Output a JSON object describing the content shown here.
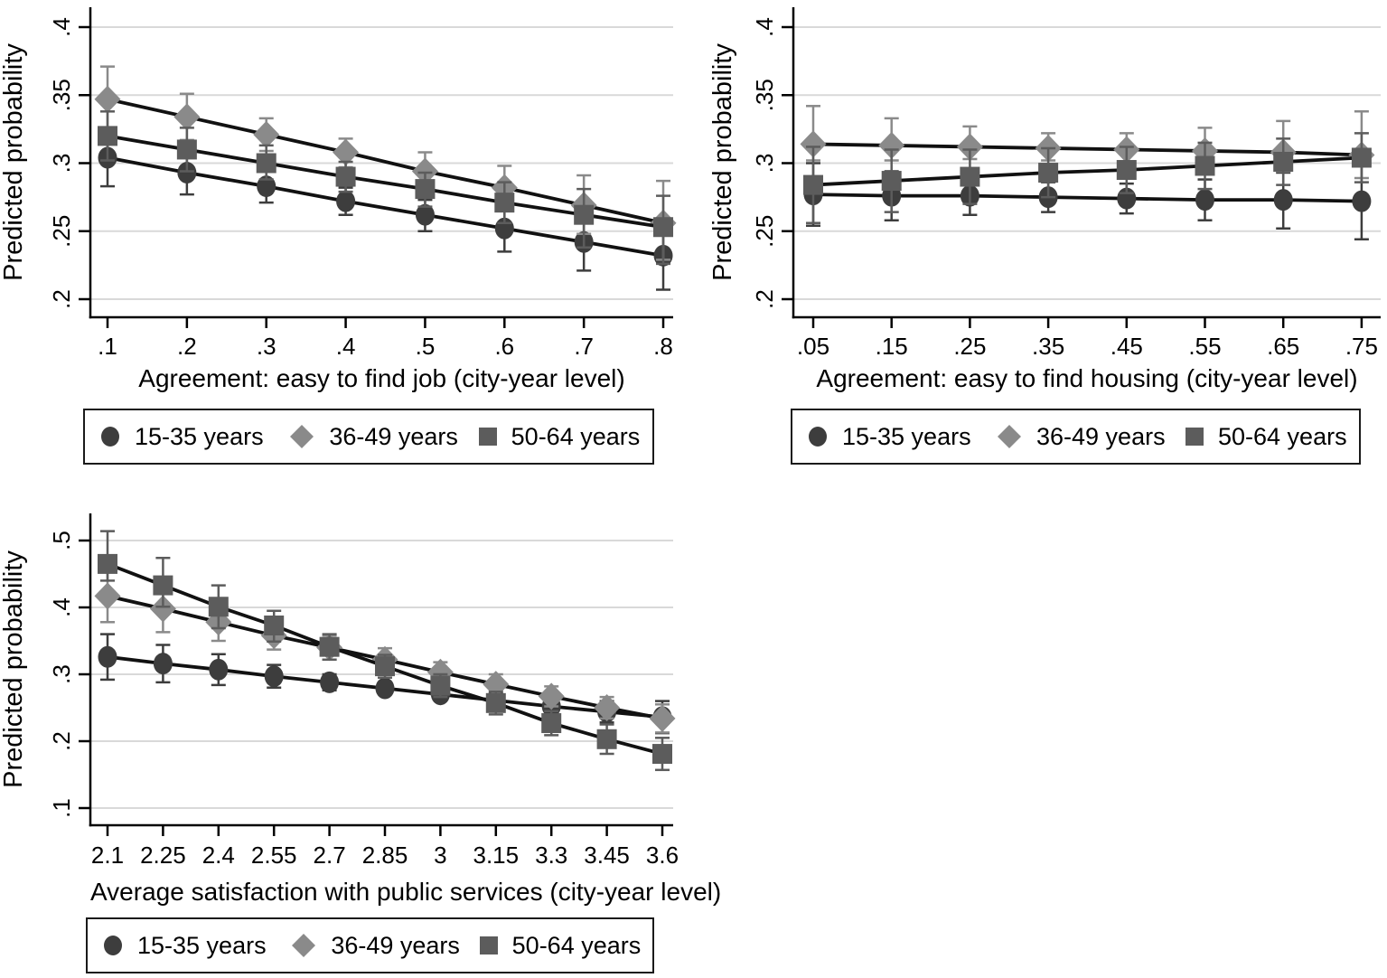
{
  "page": {
    "background_color": "#ffffff"
  },
  "colors": {
    "series_15_35": "#3d3d3d",
    "series_36_49": "#8a8a8a",
    "series_50_64": "#5c5c5c",
    "trend_line": "#111111",
    "gridline": "#d9d9d9",
    "axis": "#000000",
    "text": "#000000",
    "legend_border": "#1a1a1a"
  },
  "legend": {
    "items": [
      {
        "label": "15-35 years",
        "marker": "circle"
      },
      {
        "label": "36-49 years",
        "marker": "diamond"
      },
      {
        "label": "50-64 years",
        "marker": "square"
      }
    ]
  },
  "chart_data": [
    {
      "type": "line",
      "title": "",
      "xlabel": "Agreement: easy to find job (city-year level)",
      "ylabel": "Predicted probability",
      "x": [
        0.1,
        0.2,
        0.3,
        0.4,
        0.5,
        0.6,
        0.7,
        0.8
      ],
      "xtick_labels": [
        ".1",
        ".2",
        ".3",
        ".4",
        ".5",
        ".6",
        ".7",
        ".8"
      ],
      "ytick_values": [
        0.2,
        0.25,
        0.3,
        0.35,
        0.4
      ],
      "ytick_labels": [
        ".2",
        ".25",
        ".3",
        ".35",
        ".4"
      ],
      "ylim": [
        0.185,
        0.415
      ],
      "grid": true,
      "error_bars": true,
      "legend_position": "bottom",
      "series": [
        {
          "name": "15-35 years",
          "marker": "circle",
          "color_key": "series_15_35",
          "values": [
            0.304,
            0.293,
            0.283,
            0.272,
            0.262,
            0.252,
            0.242,
            0.232
          ],
          "ci_low": [
            0.283,
            0.277,
            0.271,
            0.262,
            0.25,
            0.235,
            0.221,
            0.207
          ],
          "ci_high": [
            0.325,
            0.31,
            0.295,
            0.282,
            0.273,
            0.267,
            0.263,
            0.258
          ]
        },
        {
          "name": "36-49 years",
          "marker": "diamond",
          "color_key": "series_36_49",
          "values": [
            0.347,
            0.334,
            0.321,
            0.308,
            0.294,
            0.282,
            0.269,
            0.256
          ],
          "ci_low": [
            0.325,
            0.317,
            0.309,
            0.297,
            0.281,
            0.265,
            0.248,
            0.229
          ],
          "ci_high": [
            0.371,
            0.351,
            0.333,
            0.318,
            0.308,
            0.298,
            0.291,
            0.287
          ]
        },
        {
          "name": "50-64 years",
          "marker": "square",
          "color_key": "series_50_64",
          "values": [
            0.32,
            0.31,
            0.3,
            0.29,
            0.281,
            0.271,
            0.262,
            0.253
          ],
          "ci_low": [
            0.302,
            0.294,
            0.288,
            0.279,
            0.268,
            0.256,
            0.238,
            0.226
          ],
          "ci_high": [
            0.338,
            0.326,
            0.313,
            0.301,
            0.293,
            0.286,
            0.281,
            0.276
          ]
        }
      ]
    },
    {
      "type": "line",
      "title": "",
      "xlabel": "Agreement: easy to find housing (city-year level)",
      "ylabel": "Predicted probability",
      "x": [
        0.05,
        0.15,
        0.25,
        0.35,
        0.45,
        0.55,
        0.65,
        0.75
      ],
      "xtick_labels": [
        ".05",
        ".15",
        ".25",
        ".35",
        ".45",
        ".55",
        ".65",
        ".75"
      ],
      "ytick_values": [
        0.2,
        0.25,
        0.3,
        0.35,
        0.4
      ],
      "ytick_labels": [
        ".2",
        ".25",
        ".3",
        ".35",
        ".4"
      ],
      "ylim": [
        0.185,
        0.415
      ],
      "grid": true,
      "error_bars": true,
      "legend_position": "bottom",
      "series": [
        {
          "name": "15-35 years",
          "marker": "circle",
          "color_key": "series_15_35",
          "values": [
            0.277,
            0.276,
            0.276,
            0.275,
            0.274,
            0.273,
            0.273,
            0.272
          ],
          "ci_low": [
            0.254,
            0.258,
            0.262,
            0.264,
            0.263,
            0.258,
            0.252,
            0.244
          ],
          "ci_high": [
            0.3,
            0.294,
            0.29,
            0.286,
            0.285,
            0.288,
            0.293,
            0.3
          ]
        },
        {
          "name": "36-49 years",
          "marker": "diamond",
          "color_key": "series_36_49",
          "values": [
            0.314,
            0.313,
            0.312,
            0.311,
            0.31,
            0.309,
            0.308,
            0.306
          ],
          "ci_low": [
            0.302,
            0.302,
            0.303,
            0.302,
            0.3,
            0.297,
            0.294,
            0.289
          ],
          "ci_high": [
            0.342,
            0.333,
            0.327,
            0.322,
            0.322,
            0.326,
            0.331,
            0.338
          ]
        },
        {
          "name": "50-64 years",
          "marker": "square",
          "color_key": "series_50_64",
          "values": [
            0.284,
            0.287,
            0.29,
            0.293,
            0.295,
            0.298,
            0.301,
            0.304
          ],
          "ci_low": [
            0.256,
            0.264,
            0.27,
            0.275,
            0.278,
            0.281,
            0.284,
            0.286
          ],
          "ci_high": [
            0.312,
            0.31,
            0.31,
            0.311,
            0.312,
            0.315,
            0.318,
            0.322
          ]
        }
      ]
    },
    {
      "type": "line",
      "title": "",
      "xlabel": "Average satisfaction with public services (city-year level)",
      "ylabel": "Predicted probability",
      "x": [
        2.1,
        2.25,
        2.4,
        2.55,
        2.7,
        2.85,
        3,
        3.15,
        3.3,
        3.45,
        3.6
      ],
      "xtick_labels": [
        "2.1",
        "2.25",
        "2.4",
        "2.55",
        "2.7",
        "2.85",
        "3",
        "3.15",
        "3.3",
        "3.45",
        "3.6"
      ],
      "ytick_values": [
        0.1,
        0.2,
        0.3,
        0.4,
        0.5
      ],
      "ytick_labels": [
        ".1",
        ".2",
        ".3",
        ".4",
        ".5"
      ],
      "ylim": [
        0.08,
        0.54
      ],
      "grid": true,
      "error_bars": true,
      "legend_position": "bottom",
      "series": [
        {
          "name": "15-35 years",
          "marker": "circle",
          "color_key": "series_15_35",
          "values": [
            0.326,
            0.316,
            0.307,
            0.297,
            0.288,
            0.279,
            0.27,
            0.261,
            0.252,
            0.244,
            0.236
          ],
          "ci_low": [
            0.292,
            0.288,
            0.284,
            0.28,
            0.276,
            0.27,
            0.262,
            0.251,
            0.24,
            0.228,
            0.212
          ],
          "ci_high": [
            0.36,
            0.344,
            0.33,
            0.314,
            0.3,
            0.288,
            0.278,
            0.271,
            0.264,
            0.26,
            0.26
          ]
        },
        {
          "name": "36-49 years",
          "marker": "diamond",
          "color_key": "series_36_49",
          "values": [
            0.417,
            0.398,
            0.378,
            0.358,
            0.34,
            0.322,
            0.303,
            0.285,
            0.267,
            0.25,
            0.234
          ],
          "ci_low": [
            0.378,
            0.363,
            0.35,
            0.337,
            0.322,
            0.305,
            0.288,
            0.27,
            0.252,
            0.234,
            0.213
          ],
          "ci_high": [
            0.456,
            0.433,
            0.406,
            0.38,
            0.358,
            0.339,
            0.318,
            0.3,
            0.282,
            0.266,
            0.255
          ]
        },
        {
          "name": "50-64 years",
          "marker": "square",
          "color_key": "series_50_64",
          "values": [
            0.465,
            0.433,
            0.401,
            0.373,
            0.341,
            0.312,
            0.283,
            0.257,
            0.227,
            0.203,
            0.181
          ],
          "ci_low": [
            0.44,
            0.401,
            0.369,
            0.349,
            0.322,
            0.295,
            0.266,
            0.24,
            0.209,
            0.181,
            0.157
          ],
          "ci_high": [
            0.514,
            0.474,
            0.433,
            0.395,
            0.36,
            0.329,
            0.3,
            0.274,
            0.245,
            0.225,
            0.205
          ]
        }
      ]
    }
  ]
}
